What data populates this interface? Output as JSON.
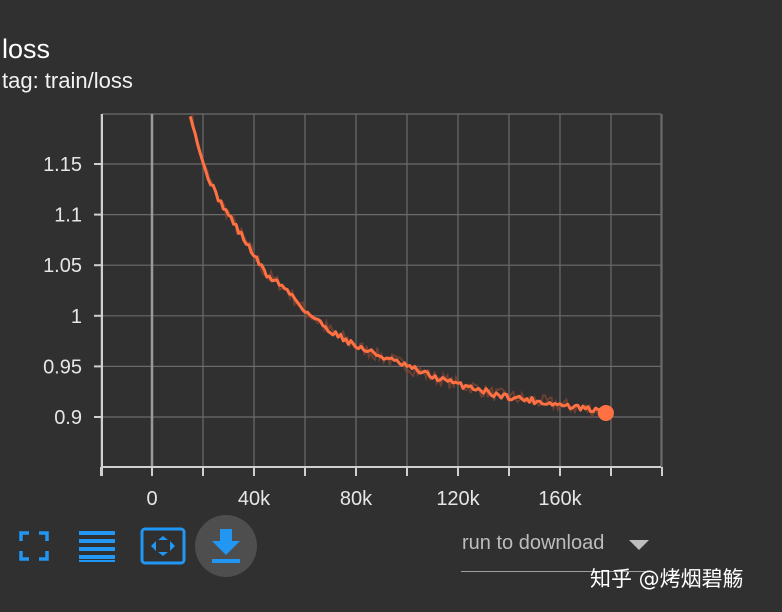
{
  "card": {
    "title": "loss",
    "tag": "tag: train/loss"
  },
  "toolbar": {
    "fullscreen_icon": "fullscreen-icon",
    "data_table_icon": "list-lines-icon",
    "fit_domain_icon": "fit-to-data-icon",
    "download_icon": "download-icon"
  },
  "download_select": {
    "value": "run to download"
  },
  "watermark": "知乎 @烤烟碧觞",
  "colors": {
    "background": "#303030",
    "series": "#ff7043",
    "series_raw": "#7a4332",
    "grid": "#6b6b6b",
    "accent_blue": "#2196f3"
  },
  "chart_data": {
    "type": "line",
    "title": "loss",
    "xlabel": "",
    "ylabel": "",
    "xlim": [
      -100000,
      200000
    ],
    "ylim": [
      0.85,
      1.2
    ],
    "x_ticks": [
      0,
      40000,
      80000,
      120000,
      160000
    ],
    "x_tick_labels": [
      "0",
      "40k",
      "80k",
      "120k",
      "160k"
    ],
    "y_ticks": [
      0.9,
      0.95,
      1.0,
      1.05,
      1.1,
      1.15
    ],
    "y_tick_labels": [
      "0.9",
      "0.95",
      "1",
      "1.05",
      "1.1",
      "1.15"
    ],
    "grid": true,
    "series": [
      {
        "x": [
          15000,
          20000,
          25000,
          30000,
          35000,
          40000,
          45000,
          50000,
          55000,
          60000,
          65000,
          70000,
          75000,
          80000,
          85000,
          90000,
          95000,
          100000,
          105000,
          110000,
          115000,
          120000,
          125000,
          130000,
          135000,
          140000,
          145000,
          150000,
          155000,
          160000,
          165000,
          170000,
          175000,
          178000
        ],
        "values": [
          1.2,
          1.15,
          1.12,
          1.1,
          1.08,
          1.06,
          1.04,
          1.032,
          1.02,
          1.005,
          0.995,
          0.985,
          0.978,
          0.97,
          0.965,
          0.96,
          0.955,
          0.95,
          0.945,
          0.94,
          0.936,
          0.932,
          0.93,
          0.926,
          0.922,
          0.92,
          0.918,
          0.916,
          0.914,
          0.912,
          0.91,
          0.908,
          0.906,
          0.904
        ]
      }
    ]
  }
}
